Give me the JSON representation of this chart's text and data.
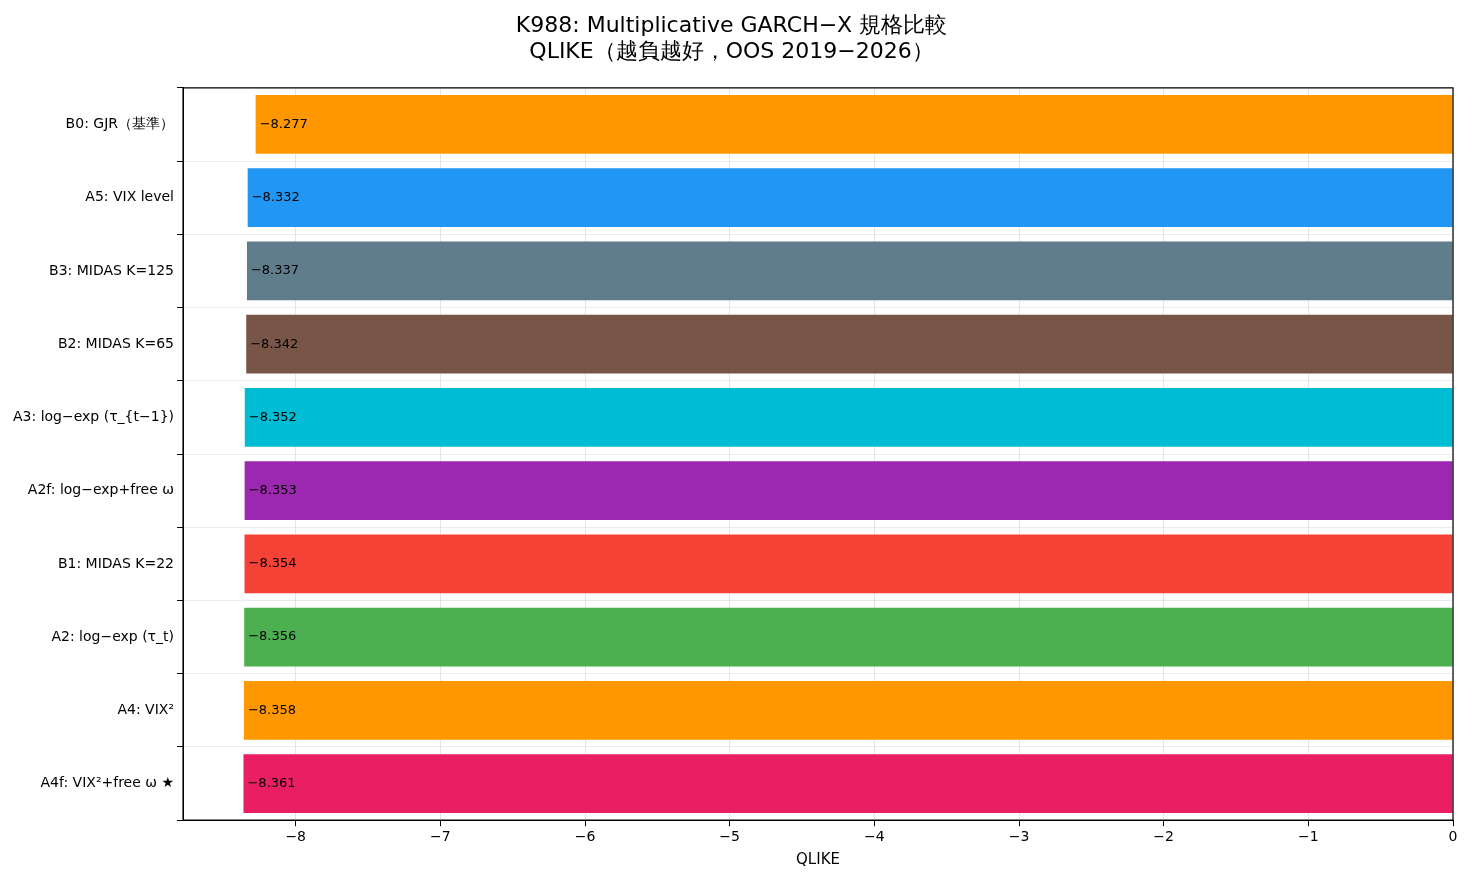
{
  "chart_data": {
    "type": "bar",
    "orientation": "horizontal",
    "title": "K988: Multiplicative GARCH−X 規格比較\nQLIKE（越負越好，OOS 2019−2026）",
    "xlabel": "QLIKE",
    "categories": [
      "B0: GJR（基準）",
      "A5: VIX level",
      "B3: MIDAS K=125",
      "B2: MIDAS K=65",
      "A3: log−exp (τ_{t−1})",
      "A2f: log−exp+free ω",
      "B1: MIDAS K=22",
      "A2: log−exp (τ_t)",
      "A4: VIX²",
      "A4f: VIX²+free ω ★"
    ],
    "values": [
      -8.277,
      -8.332,
      -8.337,
      -8.342,
      -8.352,
      -8.353,
      -8.354,
      -8.356,
      -8.358,
      -8.361
    ],
    "colors": [
      "#ff9800",
      "#2196f3",
      "#607d8b",
      "#795548",
      "#00bcd4",
      "#9c27b0",
      "#f44336",
      "#4caf50",
      "#ff9800",
      "#e91e63"
    ],
    "xlim": [
      -8.779,
      0
    ],
    "xticks": [
      {
        "value": -8,
        "label": "−8"
      },
      {
        "value": -7,
        "label": "−7"
      },
      {
        "value": -6,
        "label": "−6"
      },
      {
        "value": -5,
        "label": "−5"
      },
      {
        "value": -4,
        "label": "−4"
      },
      {
        "value": -3,
        "label": "−3"
      },
      {
        "value": -2,
        "label": "−2"
      },
      {
        "value": -1,
        "label": "−1"
      },
      0
    ],
    "grid": true,
    "data_labels": true
  }
}
